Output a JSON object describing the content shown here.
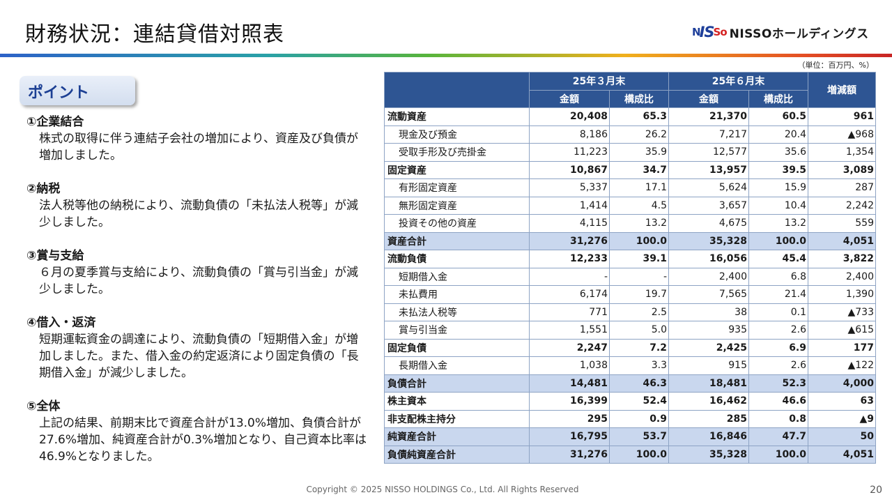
{
  "title": "財務状況：連結貸借対照表",
  "logo": {
    "mark1": "N",
    "mark2": "IS",
    "mark3": "So",
    "text": "NISSOホールディングス"
  },
  "unit": "（単位：百万円、%）",
  "point_title": "ポイント",
  "points": [
    {
      "head": "①企業結合",
      "body": "株式の取得に伴う連結子会社の増加により、資産及び負債が増加しました。"
    },
    {
      "head": "②納税",
      "body": "法人税等他の納税により、流動負債の「未払法人税等」が減少しました。"
    },
    {
      "head": "③賞与支給",
      "body": "６月の夏季賞与支給により、流動負債の「賞与引当金」が減少しました。"
    },
    {
      "head": "④借入・返済",
      "body": "短期運転資金の調達により、流動負債の「短期借入金」が増加しました。また、借入金の約定返済により固定負債の「長期借入金」が減少しました。"
    },
    {
      "head": "⑤全体",
      "body": "上記の結果、前期末比で資産合計が13.0%増加、負債合計が27.6%増加、純資産合計が0.3%増加となり、自己資本比率は46.9%となりました。"
    }
  ],
  "table": {
    "period1": "25年３月末",
    "period2": "25年６月末",
    "col_amount": "金額",
    "col_ratio": "構成比",
    "col_change": "増減額",
    "rows": [
      {
        "label": "流動資産",
        "v1": "20,408",
        "r1": "65.3",
        "v2": "21,370",
        "r2": "60.5",
        "d": "961",
        "style": "bold"
      },
      {
        "label": "現金及び預金",
        "v1": "8,186",
        "r1": "26.2",
        "v2": "7,217",
        "r2": "20.4",
        "d": "▲968",
        "style": "sub"
      },
      {
        "label": "受取手形及び売掛金",
        "v1": "11,223",
        "r1": "35.9",
        "v2": "12,577",
        "r2": "35.6",
        "d": "1,354",
        "style": "sub"
      },
      {
        "label": "固定資産",
        "v1": "10,867",
        "r1": "34.7",
        "v2": "13,957",
        "r2": "39.5",
        "d": "3,089",
        "style": "bold"
      },
      {
        "label": "有形固定資産",
        "v1": "5,337",
        "r1": "17.1",
        "v2": "5,624",
        "r2": "15.9",
        "d": "287",
        "style": "sub"
      },
      {
        "label": "無形固定資産",
        "v1": "1,414",
        "r1": "4.5",
        "v2": "3,657",
        "r2": "10.4",
        "d": "2,242",
        "style": "sub"
      },
      {
        "label": "投資その他の資産",
        "v1": "4,115",
        "r1": "13.2",
        "v2": "4,675",
        "r2": "13.2",
        "d": "559",
        "style": "sub"
      },
      {
        "label": "資産合計",
        "v1": "31,276",
        "r1": "100.0",
        "v2": "35,328",
        "r2": "100.0",
        "d": "4,051",
        "style": "total"
      },
      {
        "label": "流動負債",
        "v1": "12,233",
        "r1": "39.1",
        "v2": "16,056",
        "r2": "45.4",
        "d": "3,822",
        "style": "bold"
      },
      {
        "label": "短期借入金",
        "v1": "-",
        "r1": "-",
        "v2": "2,400",
        "r2": "6.8",
        "d": "2,400",
        "style": "sub"
      },
      {
        "label": "未払費用",
        "v1": "6,174",
        "r1": "19.7",
        "v2": "7,565",
        "r2": "21.4",
        "d": "1,390",
        "style": "sub"
      },
      {
        "label": "未払法人税等",
        "v1": "771",
        "r1": "2.5",
        "v2": "38",
        "r2": "0.1",
        "d": "▲733",
        "style": "sub"
      },
      {
        "label": "賞与引当金",
        "v1": "1,551",
        "r1": "5.0",
        "v2": "935",
        "r2": "2.6",
        "d": "▲615",
        "style": "sub"
      },
      {
        "label": "固定負債",
        "v1": "2,247",
        "r1": "7.2",
        "v2": "2,425",
        "r2": "6.9",
        "d": "177",
        "style": "bold"
      },
      {
        "label": "長期借入金",
        "v1": "1,038",
        "r1": "3.3",
        "v2": "915",
        "r2": "2.6",
        "d": "▲122",
        "style": "sub"
      },
      {
        "label": "負債合計",
        "v1": "14,481",
        "r1": "46.3",
        "v2": "18,481",
        "r2": "52.3",
        "d": "4,000",
        "style": "total"
      },
      {
        "label": "株主資本",
        "v1": "16,399",
        "r1": "52.4",
        "v2": "16,462",
        "r2": "46.6",
        "d": "63",
        "style": "bold"
      },
      {
        "label": "非支配株主持分",
        "v1": "295",
        "r1": "0.9",
        "v2": "285",
        "r2": "0.8",
        "d": "▲9",
        "style": "bold"
      },
      {
        "label": "純資産合計",
        "v1": "16,795",
        "r1": "53.7",
        "v2": "16,846",
        "r2": "47.7",
        "d": "50",
        "style": "total"
      },
      {
        "label": "負債純資産合計",
        "v1": "31,276",
        "r1": "100.0",
        "v2": "35,328",
        "r2": "100.0",
        "d": "4,051",
        "style": "total"
      }
    ]
  },
  "footer": "Copyright © 2025 NISSO HOLDINGS Co., Ltd. All Rights Reserved",
  "page_number": "20"
}
